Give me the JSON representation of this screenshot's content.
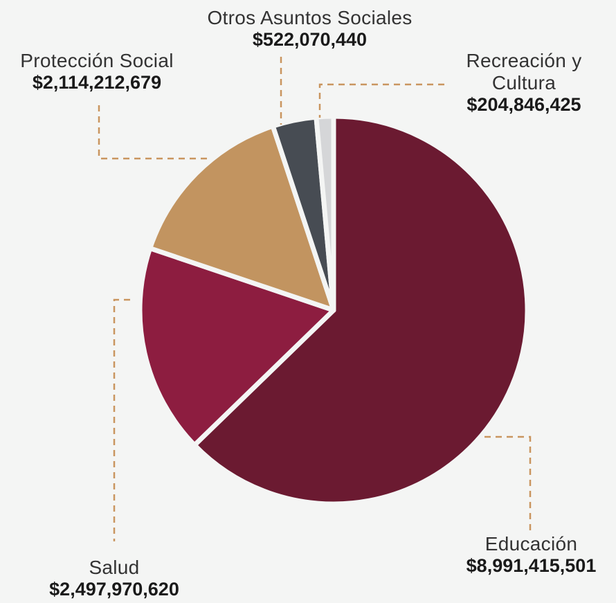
{
  "chart_data": {
    "type": "pie",
    "title": "",
    "slices": [
      {
        "name": "Educación",
        "value": 8991415501,
        "label": "$8,991,415,501",
        "color": "#6b1a31"
      },
      {
        "name": "Salud",
        "value": 2497970620,
        "label": "$2,497,970,620",
        "color": "#8d1d40"
      },
      {
        "name": "Protección Social",
        "value": 2114212679,
        "label": "$2,114,212,679",
        "color": "#c29460"
      },
      {
        "name": "Otros Asuntos Sociales",
        "value": 522070440,
        "label": "$522,070,440",
        "color": "#474c53"
      },
      {
        "name": "Recreación y Cultura",
        "value": 204846425,
        "label": "$204,846,425",
        "color": "#d5d6d8"
      }
    ],
    "leader_color": "#c9955f"
  },
  "labels": {
    "educacion": {
      "name": "Educación",
      "value": "$8,991,415,501"
    },
    "salud": {
      "name": "Salud",
      "value": "$2,497,970,620"
    },
    "proteccion": {
      "name": "Protección Social",
      "value": "$2,114,212,679"
    },
    "otros": {
      "name": "Otros Asuntos Sociales",
      "value": "$522,070,440"
    },
    "recreacion": {
      "name_line1": "Recreación y",
      "name_line2": "Cultura",
      "value": "$204,846,425"
    }
  }
}
